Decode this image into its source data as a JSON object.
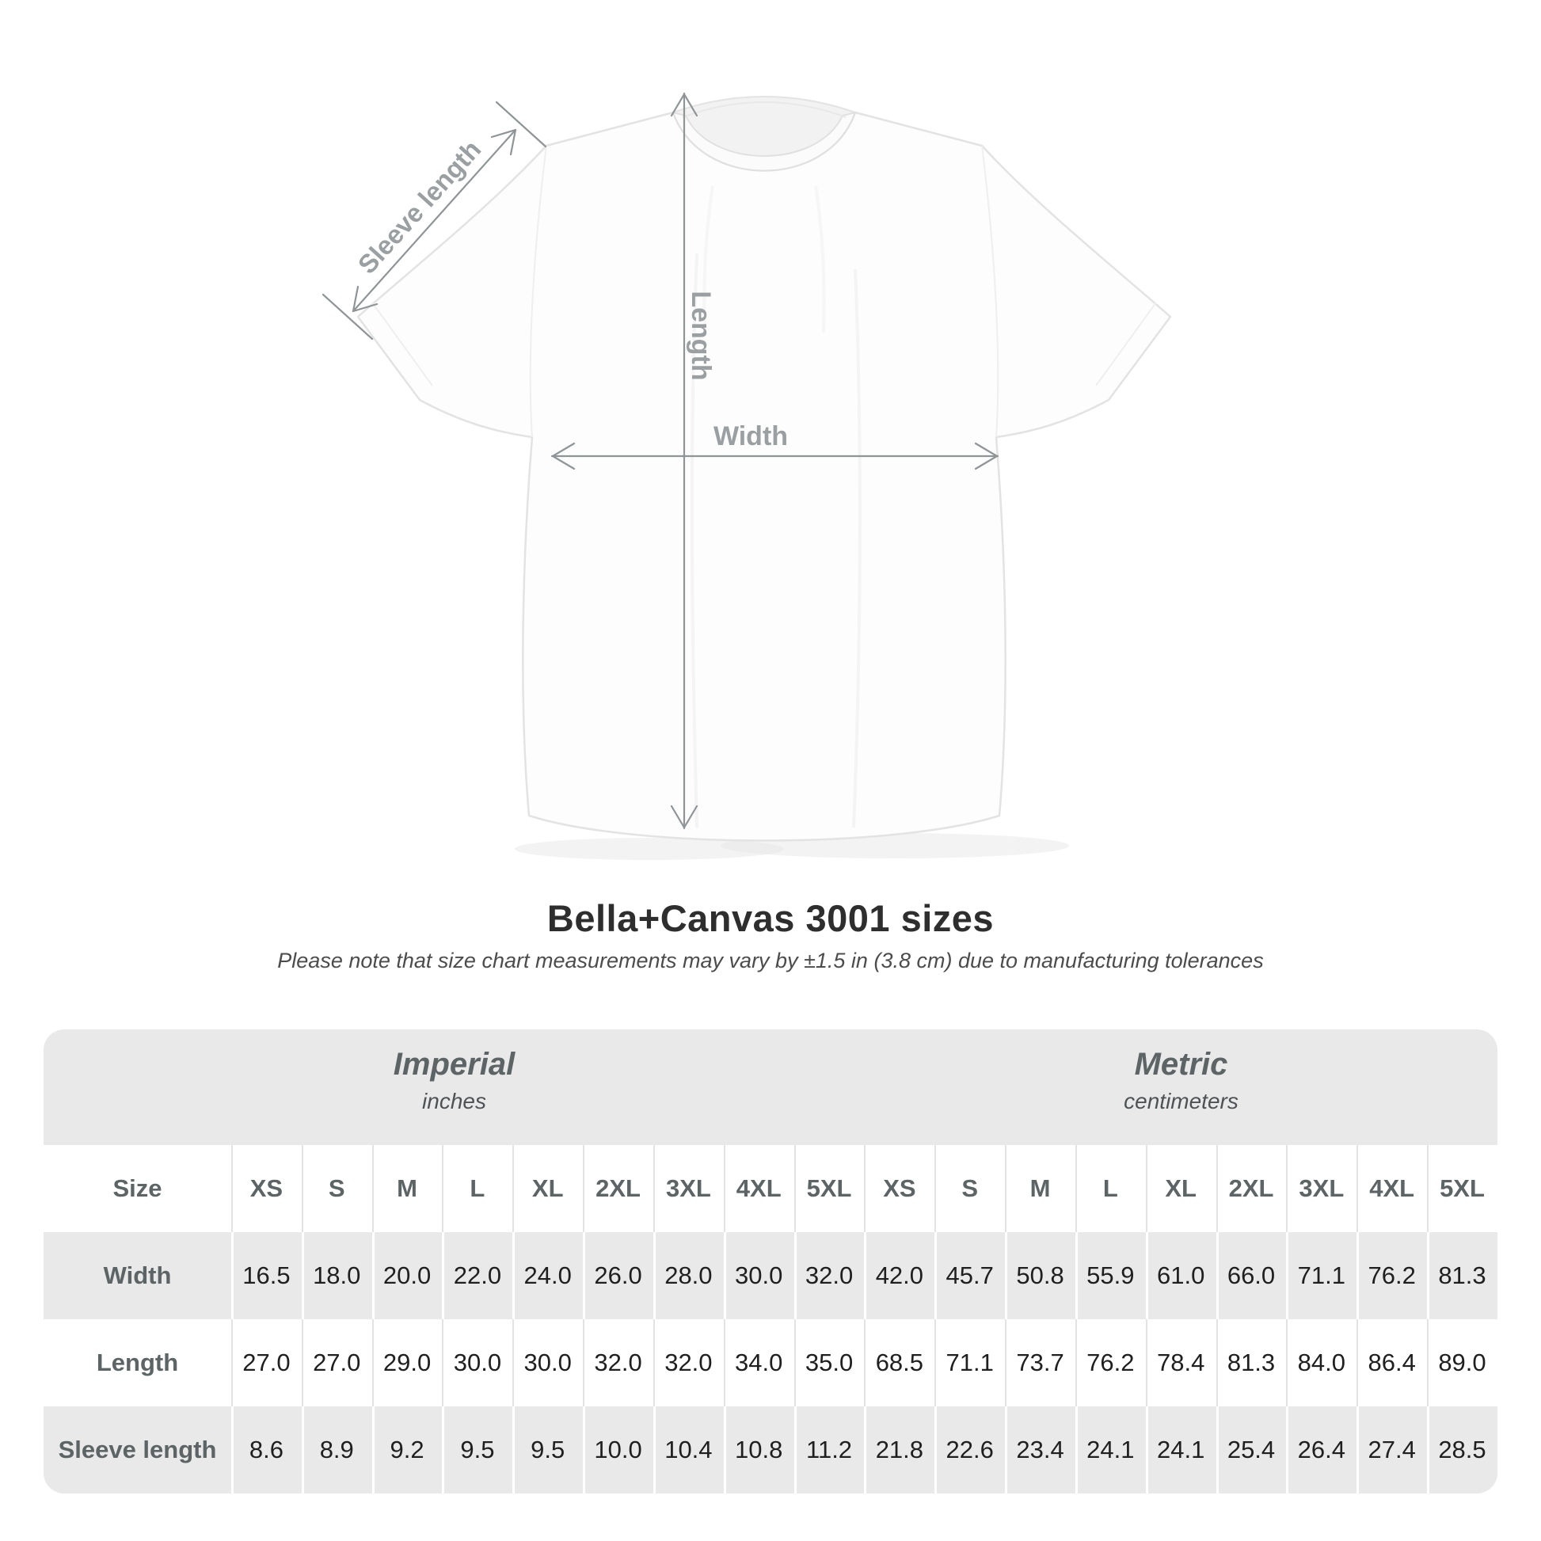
{
  "diagram": {
    "sleeve_length_label": "Sleeve length",
    "length_label": "Length",
    "width_label": "Width"
  },
  "title": "Bella+Canvas 3001 sizes",
  "subtitle": "Please note that size chart measurements may vary by ±1.5 in (3.8 cm) due to manufacturing tolerances",
  "colors": {
    "card_background": "#e9e9e9",
    "annotation_gray": "#9a9fa1",
    "table_text_gray": "#5d6466"
  },
  "table": {
    "size_header": "Size",
    "sizes": [
      "XS",
      "S",
      "M",
      "L",
      "XL",
      "2XL",
      "3XL",
      "4XL",
      "5XL"
    ],
    "groups": [
      {
        "label": "Imperial",
        "sublabel": "inches"
      },
      {
        "label": "Metric",
        "sublabel": "centimeters"
      }
    ],
    "rows": [
      {
        "label": "Width",
        "imperial": [
          "16.5",
          "18.0",
          "20.0",
          "22.0",
          "24.0",
          "26.0",
          "28.0",
          "30.0",
          "32.0"
        ],
        "metric": [
          "42.0",
          "45.7",
          "50.8",
          "55.9",
          "61.0",
          "66.0",
          "71.1",
          "76.2",
          "81.3"
        ]
      },
      {
        "label": "Length",
        "imperial": [
          "27.0",
          "27.0",
          "29.0",
          "30.0",
          "30.0",
          "32.0",
          "32.0",
          "34.0",
          "35.0"
        ],
        "metric": [
          "68.5",
          "71.1",
          "73.7",
          "76.2",
          "78.4",
          "81.3",
          "84.0",
          "86.4",
          "89.0"
        ]
      },
      {
        "label": "Sleeve length",
        "imperial": [
          "8.6",
          "8.9",
          "9.2",
          "9.5",
          "9.5",
          "10.0",
          "10.4",
          "10.8",
          "11.2"
        ],
        "metric": [
          "21.8",
          "22.6",
          "23.4",
          "24.1",
          "24.1",
          "25.4",
          "26.4",
          "27.4",
          "28.5"
        ]
      }
    ]
  },
  "chart_data": {
    "type": "table",
    "title": "Bella+Canvas 3001 sizes",
    "subtitle": "Please note that size chart measurements may vary by ±1.5 in (3.8 cm) due to manufacturing tolerances",
    "column_groups": [
      {
        "label": "Imperial",
        "unit": "inches",
        "columns": [
          "XS",
          "S",
          "M",
          "L",
          "XL",
          "2XL",
          "3XL",
          "4XL",
          "5XL"
        ]
      },
      {
        "label": "Metric",
        "unit": "centimeters",
        "columns": [
          "XS",
          "S",
          "M",
          "L",
          "XL",
          "2XL",
          "3XL",
          "4XL",
          "5XL"
        ]
      }
    ],
    "rows": [
      {
        "label": "Width",
        "imperial_in": [
          16.5,
          18.0,
          20.0,
          22.0,
          24.0,
          26.0,
          28.0,
          30.0,
          32.0
        ],
        "metric_cm": [
          42.0,
          45.7,
          50.8,
          55.9,
          61.0,
          66.0,
          71.1,
          76.2,
          81.3
        ]
      },
      {
        "label": "Length",
        "imperial_in": [
          27.0,
          27.0,
          29.0,
          30.0,
          30.0,
          32.0,
          32.0,
          34.0,
          35.0
        ],
        "metric_cm": [
          68.5,
          71.1,
          73.7,
          76.2,
          78.4,
          81.3,
          84.0,
          86.4,
          89.0
        ]
      },
      {
        "label": "Sleeve length",
        "imperial_in": [
          8.6,
          8.9,
          9.2,
          9.5,
          9.5,
          10.0,
          10.4,
          10.8,
          11.2
        ],
        "metric_cm": [
          21.8,
          22.6,
          23.4,
          24.1,
          24.1,
          25.4,
          26.4,
          27.4,
          28.5
        ]
      }
    ]
  }
}
